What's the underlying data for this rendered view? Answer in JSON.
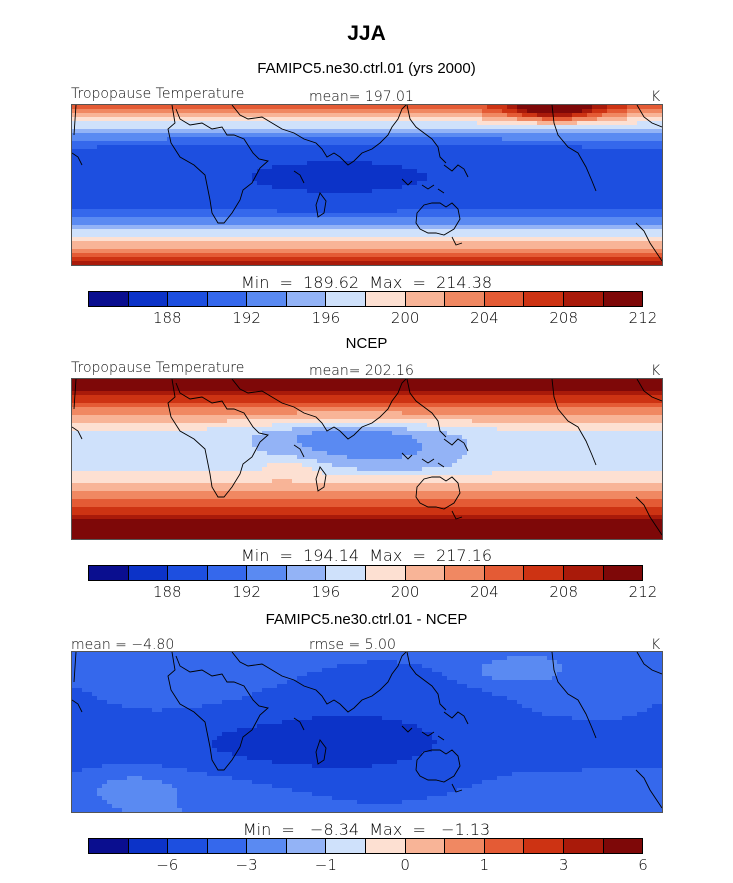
{
  "title": "JJA",
  "palette": [
    "#0a0e8f",
    "#0c33c8",
    "#1d4fe0",
    "#3568ec",
    "#5a8af2",
    "#93b3f6",
    "#cfe1fb",
    "#fde0d2",
    "#f8b497",
    "#f08862",
    "#e45b35",
    "#cd3313",
    "#a91a0a",
    "#7e0808"
  ],
  "coast_color": "#000000",
  "panels": [
    {
      "title": "FAMIPC5.ne30.ctrl.01 (yrs 2000)",
      "left_label": "Tropopause Temperature",
      "center_label": "mean=  197.01",
      "units": "K",
      "minmax": "Min  =  189.62  Max  =  214.38",
      "ticks": [
        "188",
        "192",
        "196",
        "200",
        "204",
        "208",
        "212"
      ],
      "field": "ctrl"
    },
    {
      "title": "NCEP",
      "left_label": "Tropopause Temperature",
      "center_label": "mean=  202.16",
      "units": "K",
      "minmax": "Min  =  194.14  Max  =  217.16",
      "ticks": [
        "188",
        "192",
        "196",
        "200",
        "204",
        "208",
        "212"
      ],
      "field": "ncep"
    },
    {
      "title": "FAMIPC5.ne30.ctrl.01 - NCEP",
      "left_label": "mean =   −4.80",
      "center_label": "rmse =   5.00",
      "units": "K",
      "minmax": "Min  =   −8.34  Max  =   −1.13",
      "ticks": [
        "−6",
        "−3",
        "−1",
        "0",
        "1",
        "3",
        "6"
      ],
      "field": "diff"
    }
  ]
}
